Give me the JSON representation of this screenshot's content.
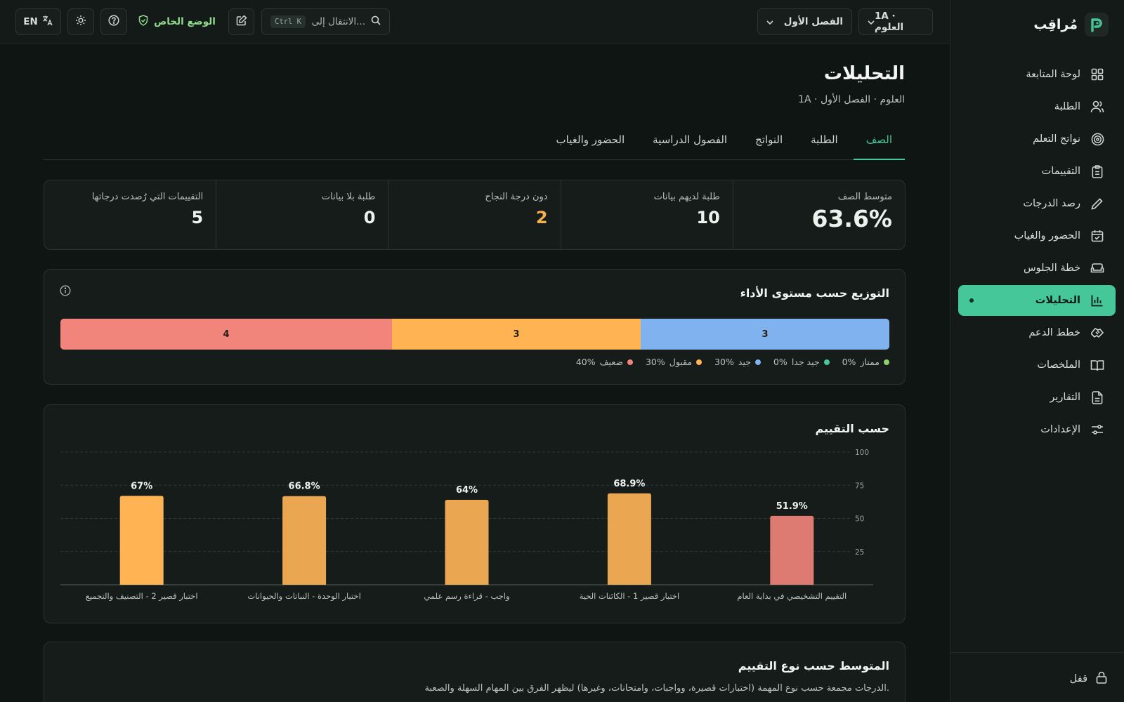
{
  "brand": {
    "name": "مُراقِب"
  },
  "sidebar": {
    "items": [
      {
        "label": "لوحة المتابعة",
        "icon": "dashboard-icon"
      },
      {
        "label": "الطلبة",
        "icon": "users-icon"
      },
      {
        "label": "نواتج التعلم",
        "icon": "target-icon"
      },
      {
        "label": "التقييمات",
        "icon": "clipboard-icon"
      },
      {
        "label": "رصد الدرجات",
        "icon": "pencil-icon"
      },
      {
        "label": "الحضور والغياب",
        "icon": "calendar-check-icon"
      },
      {
        "label": "خطة الجلوس",
        "icon": "sofa-icon"
      },
      {
        "label": "التحليلات",
        "icon": "bar-chart-icon",
        "active": true
      },
      {
        "label": "خطط الدعم",
        "icon": "handshake-icon"
      },
      {
        "label": "الملخصات",
        "icon": "book-icon"
      },
      {
        "label": "التقارير",
        "icon": "file-text-icon"
      },
      {
        "label": "الإعدادات",
        "icon": "sliders-icon"
      }
    ],
    "lock_label": "قفل"
  },
  "topbar": {
    "class_select": "1A · العلوم",
    "term_select": "الفصل الأول",
    "search_placeholder": "الانتقال إلى...",
    "search_shortcut": "Ctrl K",
    "privacy_label": "الوضع الخاص",
    "lang_label": "EN"
  },
  "page": {
    "title": "التحليلات",
    "subtitle": "1A · العلوم · الفصل الأول",
    "tabs": [
      {
        "label": "الصف",
        "active": true
      },
      {
        "label": "الطلبة"
      },
      {
        "label": "النواتج"
      },
      {
        "label": "الفصول الدراسية"
      },
      {
        "label": "الحضور والغياب"
      }
    ]
  },
  "stats": [
    {
      "label": "متوسط الصف",
      "value": "63.6%"
    },
    {
      "label": "طلبة لديهم بيانات",
      "value": "10"
    },
    {
      "label": "دون درجة النجاح",
      "value": "2",
      "color": "#f4b04f"
    },
    {
      "label": "طلبة بلا بيانات",
      "value": "0"
    },
    {
      "label": "التقييمات التي رُصدت درجاتها",
      "value": "5"
    }
  ],
  "distribution": {
    "title": "التوزيع حسب مستوى الأداء",
    "segments": [
      {
        "label": "3",
        "count": 3,
        "color": "#7fb2ef"
      },
      {
        "label": "3",
        "count": 3,
        "color": "#ffb352"
      },
      {
        "label": "4",
        "count": 4,
        "color": "#f2857b"
      }
    ],
    "legend": [
      {
        "name": "ممتاز",
        "pct": "0%",
        "color": "#8fd16a"
      },
      {
        "name": "جيد جدا",
        "pct": "0%",
        "color": "#46c79a"
      },
      {
        "name": "جيد",
        "pct": "30%",
        "color": "#7fb2ef"
      },
      {
        "name": "مقبول",
        "pct": "30%",
        "color": "#ffb352"
      },
      {
        "name": "ضعيف",
        "pct": "40%",
        "color": "#f2857b"
      }
    ]
  },
  "chart_data": {
    "type": "bar",
    "title": "حسب التقييم",
    "categories": [
      "التقييم التشخيصي في بداية العام",
      "اختبار قصير 1 - الكائنات الحية",
      "واجب - قراءة رسم علمي",
      "اختبار الوحدة - النباتات والحيوانات",
      "اختبار قصير 2 - التصنيف والتجميع"
    ],
    "values": [
      51.9,
      68.9,
      64,
      66.8,
      67
    ],
    "value_labels": [
      "51.9%",
      "68.9%",
      "64%",
      "66.8%",
      "67%"
    ],
    "colors": [
      "#dd7a72",
      "#eaa650",
      "#eaa650",
      "#eaa650",
      "#ffb352"
    ],
    "ylim": [
      0,
      100
    ],
    "yticks": [
      "25",
      "50",
      "75",
      "100"
    ],
    "grid": true
  },
  "by_type": {
    "title": "المتوسط حسب نوع التقييم",
    "description": "الدرجات مجمعة حسب نوع المهمة (اختبارات قصيرة، وواجبات، وامتحانات، وغيرها) ليظهر الفرق بين المهام السهلة والصعبة."
  }
}
